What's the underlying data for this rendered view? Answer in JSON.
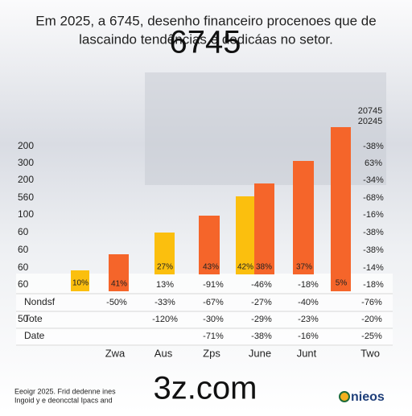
{
  "header": {
    "title_lines": [
      "Em 2025, a 6745, desenho financeiro procenoes que de",
      "lascaindo tendências e dedicáas no setor."
    ],
    "overlay": "6745"
  },
  "legend_years": [
    "20745",
    "20245"
  ],
  "left_labels": [
    "200",
    "300",
    "200",
    "560",
    "100",
    "60",
    "60",
    "60",
    "60"
  ],
  "side_label": "50",
  "right_labels": [
    "-38%",
    "63%",
    "-34%",
    "-68%",
    "-16%",
    "-38%",
    "-38%",
    "-14%",
    "-18%"
  ],
  "bar_labels": [
    "10%",
    "41%",
    "27%",
    "43%",
    "42%",
    "38%",
    "37%",
    "5%"
  ],
  "table": {
    "rows": [
      {
        "cells": [
          "13%",
          "-91%",
          "-46%",
          "-18%"
        ]
      },
      {
        "label": "Nondsf",
        "cells": [
          "-50%",
          "-33%",
          "-67%",
          "-27%",
          "-40%",
          "-76%"
        ]
      },
      {
        "label": "Tote",
        "cells": [
          "-120%",
          "-30%",
          "-29%",
          "-23%",
          "-20%"
        ]
      },
      {
        "label": "Date",
        "cells": [
          "-71%",
          "-38%",
          "-16%",
          "-25%"
        ]
      }
    ]
  },
  "categories": [
    "Zwa",
    "Aus",
    "Zps",
    "June",
    "Junt",
    "Two"
  ],
  "footer": {
    "domain": "3z.com",
    "notes": [
      "Eeoigr 2025. Frid dedenne ines",
      "Ingoid y e deoncctal Ipacs and"
    ],
    "logo": "nieos"
  }
}
